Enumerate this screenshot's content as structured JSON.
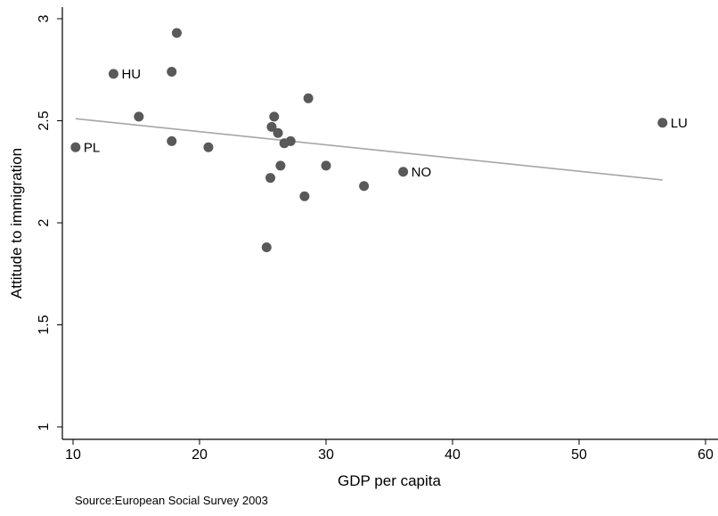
{
  "chart_data": {
    "type": "scatter",
    "xlabel": "GDP per capita",
    "ylabel": "Attitude to immigration",
    "xlim": [
      10,
      60
    ],
    "ylim": [
      1,
      3
    ],
    "xticks": [
      10,
      20,
      30,
      40,
      50,
      60
    ],
    "yticks": [
      1,
      1.5,
      2,
      2.5,
      3
    ],
    "grid": false,
    "points": [
      {
        "x": 10.2,
        "y": 2.37,
        "label": "PL"
      },
      {
        "x": 13.2,
        "y": 2.73,
        "label": "HU"
      },
      {
        "x": 15.2,
        "y": 2.52
      },
      {
        "x": 17.8,
        "y": 2.74
      },
      {
        "x": 17.8,
        "y": 2.4
      },
      {
        "x": 18.2,
        "y": 2.93
      },
      {
        "x": 20.7,
        "y": 2.37
      },
      {
        "x": 25.3,
        "y": 1.88
      },
      {
        "x": 25.6,
        "y": 2.22
      },
      {
        "x": 25.7,
        "y": 2.47
      },
      {
        "x": 25.9,
        "y": 2.52
      },
      {
        "x": 26.2,
        "y": 2.44
      },
      {
        "x": 26.4,
        "y": 2.28
      },
      {
        "x": 26.7,
        "y": 2.39
      },
      {
        "x": 27.2,
        "y": 2.4
      },
      {
        "x": 28.3,
        "y": 2.13
      },
      {
        "x": 28.6,
        "y": 2.61
      },
      {
        "x": 30.0,
        "y": 2.28
      },
      {
        "x": 33.0,
        "y": 2.18
      },
      {
        "x": 36.1,
        "y": 2.25,
        "label": "NO"
      },
      {
        "x": 56.6,
        "y": 2.49,
        "label": "LU"
      }
    ],
    "fit_line": {
      "x": [
        10.2,
        56.6
      ],
      "y": [
        2.51,
        2.21
      ]
    }
  },
  "footer": {
    "source": "Source:European Social Survey 2003"
  },
  "colors": {
    "marker": "#595959",
    "fit": "#a6a6a6",
    "axis": "#000000"
  }
}
